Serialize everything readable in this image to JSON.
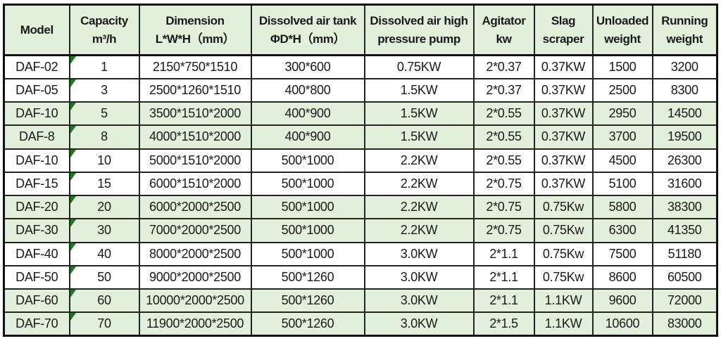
{
  "colors": {
    "header_and_shaded_row_fill": "#e2efda",
    "grid_border": "#242424",
    "outer_border": "#111111",
    "text": "#1a1a1a",
    "capacity_flag_triangle": "#1f7a1f",
    "page_background": "#ffffff"
  },
  "chart_data": {
    "type": "table",
    "title": "",
    "legend_position": "none",
    "grid": true,
    "column_keys": [
      "model",
      "capacity",
      "dimension",
      "dissolved_air_tank",
      "pressure_pump",
      "agitator",
      "slag_scraper",
      "unloaded_weight",
      "running_weight"
    ],
    "columns": [
      {
        "line1": "Model",
        "line2": ""
      },
      {
        "line1": "Capacity",
        "line2": "m³/h"
      },
      {
        "line1": "Dimension",
        "line2": "L*W*H（mm）"
      },
      {
        "line1": "Dissolved air tank",
        "line2": "ΦD*H（mm）"
      },
      {
        "line1": "Dissolved air high",
        "line2": "pressure pump"
      },
      {
        "line1": "Agitator",
        "line2": "kw"
      },
      {
        "line1": "Slag",
        "line2": "scraper"
      },
      {
        "line1": "Unloaded",
        "line2": "weight"
      },
      {
        "line1": "Running",
        "line2": "weight"
      }
    ],
    "rows": [
      {
        "cells": [
          "DAF-02",
          "1",
          "2150*750*1510",
          "300*600",
          "0.75KW",
          "2*0.37",
          "0.37KW",
          "1500",
          "3200"
        ],
        "shaded": false,
        "flag": true
      },
      {
        "cells": [
          "DAF-05",
          "3",
          "2500*1260*1510",
          "400*800",
          "1.5KW",
          "2*0.37",
          "0.37KW",
          "2500",
          "8300"
        ],
        "shaded": false,
        "flag": true
      },
      {
        "cells": [
          "DAF-10",
          "5",
          "3500*1510*2000",
          "400*900",
          "1.5KW",
          "2*0.55",
          "0.37KW",
          "2950",
          "14500"
        ],
        "shaded": true,
        "flag": true
      },
      {
        "cells": [
          "DAF-8",
          "8",
          "4000*1510*2000",
          "400*900",
          "1.5KW",
          "2*0.55",
          "0.37KW",
          "3700",
          "19500"
        ],
        "shaded": true,
        "flag": true
      },
      {
        "cells": [
          "DAF-10",
          "10",
          "5000*1510*2000",
          "500*1000",
          "2.2KW",
          "2*0.55",
          "0.37KW",
          "4500",
          "26300"
        ],
        "shaded": false,
        "flag": true
      },
      {
        "cells": [
          "DAF-15",
          "15",
          "6000*1510*2000",
          "500*1000",
          "2.2KW",
          "2*0.75",
          "0.37KW",
          "5100",
          "31600"
        ],
        "shaded": false,
        "flag": true
      },
      {
        "cells": [
          "DAF-20",
          "20",
          "6000*2000*2500",
          "500*1000",
          "2.2KW",
          "2*0.75",
          "0.75Kw",
          "5800",
          "38300"
        ],
        "shaded": true,
        "flag": true
      },
      {
        "cells": [
          "DAF-30",
          "30",
          "7000*2000*2500",
          "500*1000",
          "2.2KW",
          "2*0.75",
          "0.75Kw",
          "6300",
          "41350"
        ],
        "shaded": true,
        "flag": true
      },
      {
        "cells": [
          "DAF-40",
          "40",
          "8000*2000*2500",
          "500*1000",
          "3.0KW",
          "2*1.1",
          "0.75Kw",
          "7500",
          "51180"
        ],
        "shaded": false,
        "flag": true
      },
      {
        "cells": [
          "DAF-50",
          "50",
          "9000*2000*2500",
          "500*1260",
          "3.0KW",
          "2*1.1",
          "0.75Kw",
          "8600",
          "60500"
        ],
        "shaded": false,
        "flag": true
      },
      {
        "cells": [
          "DAF-60",
          "60",
          "10000*2000*2500",
          "500*1260",
          "3.0KW",
          "2*1.1",
          "1.1KW",
          "9600",
          "72000"
        ],
        "shaded": true,
        "flag": true
      },
      {
        "cells": [
          "DAF-70",
          "70",
          "11900*2000*2500",
          "500*1260",
          "3.0KW",
          "2*1.5",
          "1.1KW",
          "10600",
          "83000"
        ],
        "shaded": true,
        "flag": true
      }
    ]
  }
}
